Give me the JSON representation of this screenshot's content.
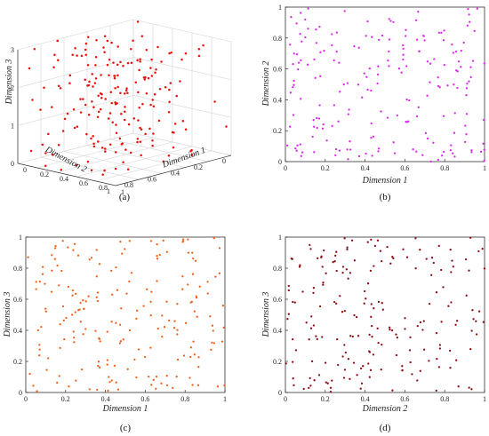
{
  "chart_data": [
    {
      "type": "scatter",
      "projection": "3d",
      "caption": "(a)",
      "color": "#e8120c",
      "xlabel": "Dimension 1",
      "ylabel": "Dimension 2",
      "zlabel": "Dimension 3",
      "xlim": [
        0,
        1
      ],
      "ylim": [
        0,
        1
      ],
      "zlim": [
        0,
        3
      ],
      "xticks": [
        "1",
        "0.8",
        "0.6",
        "0.4",
        "0.2",
        "0"
      ],
      "yticks": [
        "0",
        "0.2",
        "0.4",
        "0.6",
        "0.8",
        "1"
      ],
      "zticks": [
        "0",
        "1",
        "2",
        "3"
      ],
      "grid": true,
      "n_points": 200,
      "seed": 11
    },
    {
      "type": "scatter",
      "caption": "(b)",
      "color": "#d829e8",
      "xlabel": "Dimension 1",
      "ylabel": "Dimension 2",
      "xlim": [
        0,
        1
      ],
      "ylim": [
        0,
        1
      ],
      "xticks": [
        "0",
        "0.2",
        "0.4",
        "0.6",
        "0.8",
        "1"
      ],
      "yticks": [
        "0",
        "0.2",
        "0.4",
        "0.6",
        "0.8",
        "1"
      ],
      "grid": false,
      "n_points": 200,
      "seed": 23
    },
    {
      "type": "scatter",
      "caption": "(c)",
      "color": "#f0621c",
      "xlabel": "Dimension 1",
      "ylabel": "Dimension 3",
      "xlim": [
        0,
        1
      ],
      "ylim": [
        0,
        1
      ],
      "xticks": [
        "0",
        "0.2",
        "0.4",
        "0.6",
        "0.8",
        "1"
      ],
      "yticks": [
        "0",
        "0.2",
        "0.4",
        "0.6",
        "0.8",
        "1"
      ],
      "grid": false,
      "n_points": 200,
      "seed": 37
    },
    {
      "type": "scatter",
      "caption": "(d)",
      "color": "#8a0f14",
      "xlabel": "Dimension 2",
      "ylabel": "Dimension 3",
      "xlim": [
        0,
        1
      ],
      "ylim": [
        0,
        1
      ],
      "xticks": [
        "0",
        "0.2",
        "0.4",
        "0.6",
        "0.8",
        "1"
      ],
      "yticks": [
        "0",
        "0.2",
        "0.4",
        "0.6",
        "0.8",
        "1"
      ],
      "grid": false,
      "n_points": 200,
      "seed": 51
    }
  ]
}
